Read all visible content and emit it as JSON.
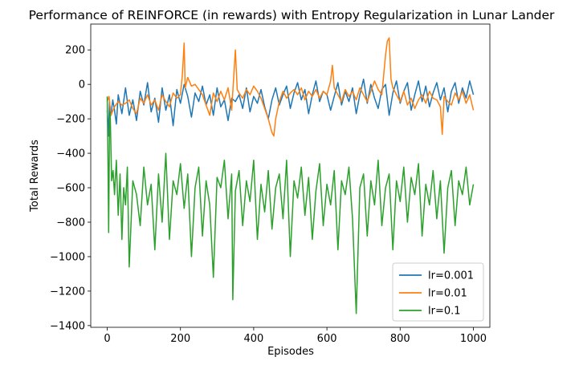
{
  "chart_data": {
    "type": "line",
    "title": "Performance of REINFORCE (in rewards) with Entropy Regularization in Lunar Lander",
    "xlabel": "Episodes",
    "ylabel": "Total Rewards",
    "xlim": [
      -45,
      1045
    ],
    "ylim": [
      -1410,
      350
    ],
    "xticks": [
      0,
      200,
      400,
      600,
      800,
      1000
    ],
    "yticks": [
      -1400,
      -1200,
      -1000,
      -800,
      -600,
      -400,
      -200,
      0,
      200
    ],
    "grid": false,
    "legend_position": "lower-right",
    "series": [
      {
        "name": "lr=0.001",
        "color": "#1f77b4",
        "x": [
          0,
          3,
          6,
          10,
          15,
          20,
          25,
          30,
          40,
          50,
          60,
          70,
          80,
          90,
          100,
          110,
          120,
          130,
          140,
          150,
          160,
          170,
          180,
          190,
          200,
          210,
          220,
          230,
          240,
          250,
          260,
          270,
          280,
          290,
          300,
          310,
          320,
          330,
          340,
          350,
          360,
          370,
          380,
          390,
          400,
          410,
          420,
          430,
          440,
          450,
          460,
          470,
          480,
          490,
          500,
          510,
          520,
          530,
          540,
          550,
          560,
          570,
          580,
          590,
          600,
          610,
          620,
          630,
          640,
          650,
          660,
          670,
          680,
          690,
          700,
          710,
          720,
          730,
          740,
          750,
          760,
          770,
          780,
          790,
          800,
          810,
          820,
          830,
          840,
          850,
          860,
          870,
          880,
          890,
          900,
          910,
          920,
          930,
          940,
          950,
          960,
          970,
          980,
          990,
          1000
        ],
        "y": [
          -150,
          -300,
          -100,
          -180,
          -90,
          -150,
          -230,
          -60,
          -170,
          -20,
          -180,
          -90,
          -210,
          -40,
          -120,
          10,
          -160,
          -80,
          -220,
          -20,
          -150,
          -60,
          -240,
          -30,
          -110,
          0,
          -70,
          -190,
          -50,
          -100,
          -10,
          -120,
          -60,
          -180,
          -20,
          -130,
          -90,
          -210,
          -80,
          -100,
          -60,
          -140,
          -20,
          -160,
          -70,
          -110,
          -30,
          -130,
          -200,
          -90,
          -20,
          -120,
          -60,
          -10,
          -140,
          -50,
          10,
          -90,
          -30,
          -170,
          -60,
          20,
          -100,
          -40,
          -60,
          -150,
          -70,
          10,
          -120,
          -40,
          -100,
          -20,
          -170,
          -60,
          30,
          -110,
          0,
          -80,
          -140,
          -30,
          0,
          -180,
          -50,
          20,
          -110,
          -40,
          10,
          -150,
          -60,
          20,
          -100,
          -10,
          -130,
          -50,
          10,
          -90,
          -20,
          -160,
          -40,
          10,
          -110,
          -20,
          -80,
          20,
          -60
        ]
      },
      {
        "name": "lr=0.01",
        "color": "#ff7f0e",
        "x": [
          0,
          5,
          10,
          20,
          30,
          40,
          50,
          60,
          70,
          80,
          90,
          100,
          110,
          120,
          130,
          140,
          150,
          160,
          170,
          180,
          190,
          200,
          205,
          210,
          213,
          220,
          230,
          240,
          250,
          260,
          270,
          280,
          290,
          300,
          310,
          320,
          330,
          340,
          350,
          355,
          360,
          370,
          380,
          390,
          400,
          410,
          420,
          430,
          440,
          450,
          455,
          460,
          470,
          480,
          490,
          500,
          510,
          520,
          530,
          540,
          550,
          560,
          570,
          580,
          590,
          600,
          610,
          615,
          620,
          630,
          640,
          650,
          660,
          670,
          680,
          690,
          700,
          710,
          720,
          730,
          740,
          750,
          760,
          765,
          770,
          775,
          780,
          790,
          800,
          810,
          820,
          830,
          840,
          850,
          860,
          870,
          880,
          890,
          900,
          910,
          915,
          920,
          930,
          940,
          950,
          960,
          970,
          980,
          990,
          1000
        ],
        "y": [
          -100,
          -70,
          -180,
          -130,
          -100,
          -120,
          -110,
          -90,
          -140,
          -170,
          -80,
          -110,
          -60,
          -120,
          -90,
          -150,
          -60,
          -100,
          -130,
          -50,
          -80,
          -60,
          50,
          240,
          -20,
          40,
          -10,
          0,
          -30,
          -60,
          -120,
          -180,
          -50,
          -100,
          -40,
          -90,
          -20,
          -150,
          200,
          -30,
          -50,
          -80,
          -30,
          -60,
          -10,
          -40,
          -80,
          -140,
          -200,
          -280,
          -300,
          -200,
          -100,
          -40,
          -80,
          -50,
          -30,
          -60,
          -20,
          -90,
          -40,
          -70,
          -30,
          -80,
          -40,
          -60,
          20,
          110,
          -20,
          -60,
          -100,
          -30,
          -70,
          -40,
          -90,
          -20,
          -60,
          -100,
          -40,
          20,
          -30,
          -60,
          170,
          250,
          270,
          30,
          -20,
          -60,
          -100,
          -40,
          -120,
          -80,
          -140,
          -90,
          -60,
          -110,
          -40,
          -80,
          -90,
          -130,
          -290,
          -70,
          -100,
          -120,
          -50,
          -90,
          -40,
          -110,
          -60,
          -150
        ]
      },
      {
        "name": "lr=0.1",
        "color": "#2ca02c",
        "x": [
          0,
          2,
          4,
          6,
          8,
          12,
          16,
          20,
          25,
          30,
          35,
          40,
          45,
          50,
          55,
          60,
          70,
          80,
          90,
          100,
          110,
          120,
          130,
          140,
          150,
          160,
          170,
          180,
          190,
          200,
          210,
          220,
          230,
          240,
          250,
          260,
          270,
          280,
          290,
          300,
          310,
          320,
          330,
          340,
          343,
          350,
          360,
          370,
          380,
          390,
          400,
          410,
          420,
          430,
          440,
          450,
          460,
          470,
          480,
          490,
          500,
          510,
          520,
          530,
          540,
          550,
          560,
          570,
          580,
          590,
          600,
          610,
          620,
          630,
          640,
          650,
          660,
          670,
          680,
          690,
          700,
          710,
          720,
          730,
          740,
          750,
          760,
          770,
          780,
          790,
          800,
          810,
          820,
          830,
          840,
          850,
          860,
          870,
          880,
          890,
          900,
          910,
          920,
          930,
          940,
          950,
          960,
          970,
          980,
          990,
          1000
        ],
        "y": [
          -70,
          -420,
          -860,
          -280,
          -160,
          -560,
          -500,
          -640,
          -440,
          -760,
          -520,
          -900,
          -600,
          -700,
          -480,
          -1060,
          -560,
          -640,
          -820,
          -480,
          -700,
          -580,
          -960,
          -520,
          -800,
          -400,
          -900,
          -560,
          -640,
          -460,
          -720,
          -520,
          -1000,
          -600,
          -480,
          -880,
          -560,
          -700,
          -1120,
          -540,
          -600,
          -440,
          -780,
          -520,
          -1250,
          -620,
          -500,
          -820,
          -560,
          -680,
          -440,
          -900,
          -580,
          -740,
          -500,
          -840,
          -600,
          -520,
          -780,
          -440,
          -1000,
          -560,
          -660,
          -480,
          -760,
          -540,
          -900,
          -620,
          -460,
          -820,
          -580,
          -700,
          -500,
          -960,
          -560,
          -640,
          -480,
          -780,
          -1330,
          -600,
          -520,
          -880,
          -560,
          -700,
          -440,
          -820,
          -600,
          -520,
          -960,
          -560,
          -680,
          -480,
          -800,
          -540,
          -640,
          -460,
          -880,
          -580,
          -700,
          -500,
          -780,
          -560,
          -980,
          -600,
          -500,
          -820,
          -560,
          -640,
          -480,
          -700,
          -580
        ]
      }
    ]
  }
}
